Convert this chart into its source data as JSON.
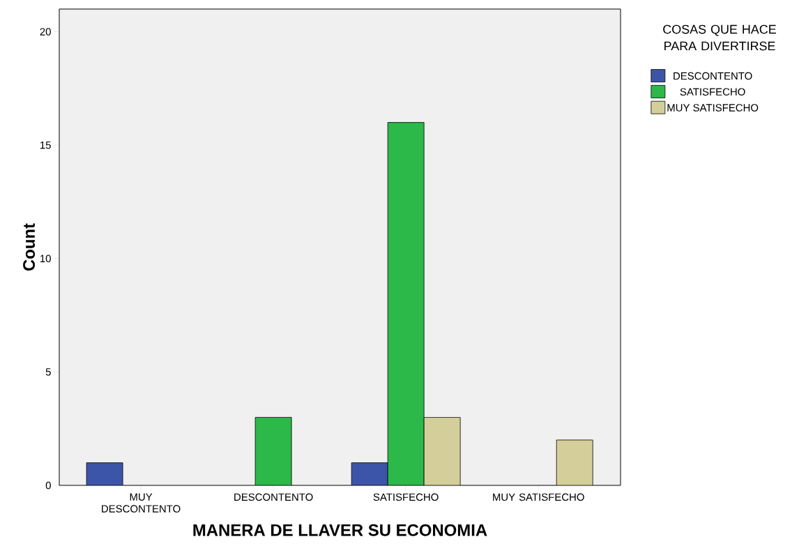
{
  "chart_data": {
    "type": "bar",
    "xlabel": "MANERA DE LLAVER SU ECONOMIA",
    "ylabel": "Count",
    "legend_title": "COSAS QUE HACE PARA DIVERTIRSE",
    "categories": [
      "MUY DESCONTENTO",
      "DESCONTENTO",
      "SATISFECHO",
      "MUY SATISFECHO"
    ],
    "series": [
      {
        "name": "DESCONTENTO",
        "color": "#3d55a8",
        "values": [
          1,
          null,
          1,
          null
        ]
      },
      {
        "name": "SATISFECHO",
        "color": "#2db84a",
        "values": [
          null,
          3,
          16,
          null
        ]
      },
      {
        "name": "MUY SATISFECHO",
        "color": "#d4cf9a",
        "values": [
          null,
          null,
          3,
          2
        ]
      }
    ],
    "ylim": [
      0,
      21
    ],
    "yticks": [
      0,
      5,
      10,
      15,
      20
    ],
    "grid": false,
    "legend": "right"
  }
}
